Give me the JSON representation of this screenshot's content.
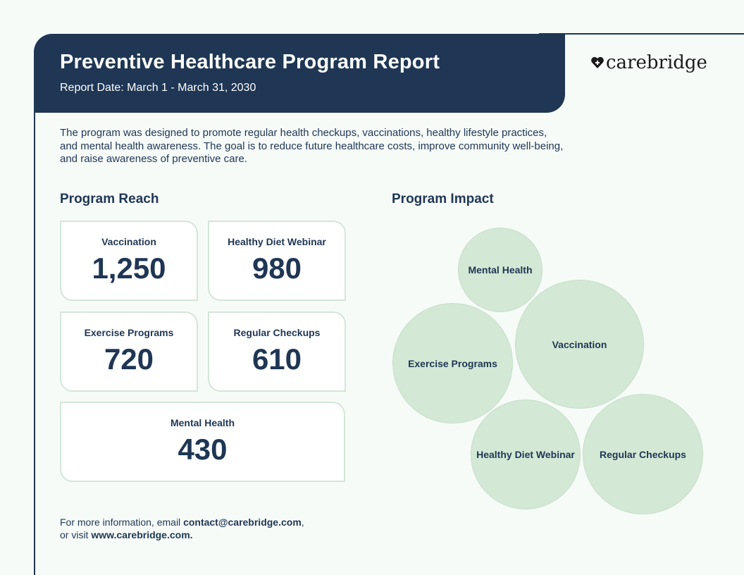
{
  "header": {
    "title": "Preventive Healthcare Program Report",
    "date": "Report Date: March 1 - March 31, 2030"
  },
  "logo": {
    "text": "carebridge",
    "icon": "heart-plus-icon"
  },
  "intro": "The program was designed to promote regular health checkups, vaccinations, healthy lifestyle practices, and mental health awareness. The goal is to reduce future healthcare costs, improve community well-being, and raise awareness of preventive care.",
  "reach": {
    "title": "Program Reach",
    "cards": [
      {
        "label": "Vaccination",
        "value": "1,250"
      },
      {
        "label": "Healthy Diet Webinar",
        "value": "980"
      },
      {
        "label": "Exercise Programs",
        "value": "720"
      },
      {
        "label": "Regular Checkups",
        "value": "610"
      },
      {
        "label": "Mental Health",
        "value": "430"
      }
    ]
  },
  "impact": {
    "title": "Program Impact",
    "bubbles": [
      "Mental Health",
      "Vaccination",
      "Exercise Programs",
      "Healthy Diet Webinar",
      "Regular Checkups"
    ]
  },
  "footer": {
    "prefix": "For more information, email ",
    "email": "contact@carebridge.com",
    "mid": ",",
    "line2_prefix": "or visit ",
    "website": "www.carebridge.com."
  },
  "colors": {
    "navy": "#1f3654",
    "bubble": "#d3e8d5",
    "card_border": "#d4e6d8",
    "background": "#f6fbf8"
  }
}
